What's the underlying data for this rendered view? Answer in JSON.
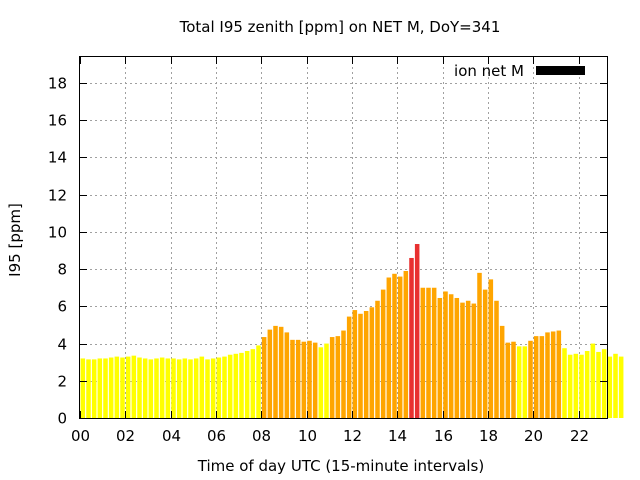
{
  "chart_data": {
    "type": "bar",
    "title": "Total I95 zenith [ppm] on NET M, DoY=341",
    "xlabel": "Time of day UTC (15-minute intervals)",
    "ylabel": "I95 [ppm]",
    "xlim": [
      0,
      23.25
    ],
    "ylim": [
      0,
      19.4
    ],
    "x_ticks": [
      {
        "value": 0,
        "label": "00"
      },
      {
        "value": 2,
        "label": "02"
      },
      {
        "value": 4,
        "label": "04"
      },
      {
        "value": 6,
        "label": "06"
      },
      {
        "value": 8,
        "label": "08"
      },
      {
        "value": 10,
        "label": "10"
      },
      {
        "value": 12,
        "label": "12"
      },
      {
        "value": 14,
        "label": "14"
      },
      {
        "value": 16,
        "label": "16"
      },
      {
        "value": 18,
        "label": "18"
      },
      {
        "value": 20,
        "label": "20"
      },
      {
        "value": 22,
        "label": "22"
      }
    ],
    "y_ticks": [
      {
        "value": 0,
        "label": "0"
      },
      {
        "value": 2,
        "label": "2"
      },
      {
        "value": 4,
        "label": "4"
      },
      {
        "value": 6,
        "label": "6"
      },
      {
        "value": 8,
        "label": "8"
      },
      {
        "value": 10,
        "label": "10"
      },
      {
        "value": 12,
        "label": "12"
      },
      {
        "value": 14,
        "label": "14"
      },
      {
        "value": 16,
        "label": "16"
      },
      {
        "value": 18,
        "label": "18"
      }
    ],
    "grid": true,
    "legend": {
      "placement": "top-right",
      "label": "ion net M",
      "color": "#000000"
    },
    "colors": {
      "low": "#ffff00",
      "medium": "#ffa500",
      "high": "#e83030"
    },
    "x_step": 0.25,
    "values": [
      3.2,
      3.15,
      3.15,
      3.2,
      3.2,
      3.25,
      3.3,
      3.25,
      3.3,
      3.35,
      3.25,
      3.2,
      3.15,
      3.2,
      3.25,
      3.2,
      3.2,
      3.15,
      3.2,
      3.15,
      3.2,
      3.3,
      3.15,
      3.2,
      3.25,
      3.3,
      3.4,
      3.45,
      3.5,
      3.6,
      3.7,
      3.9,
      4.35,
      4.75,
      4.95,
      4.9,
      4.6,
      4.2,
      4.2,
      4.1,
      4.15,
      4.05,
      3.8,
      4.0,
      4.35,
      4.4,
      4.7,
      5.45,
      5.8,
      5.6,
      5.75,
      5.95,
      6.3,
      6.9,
      7.55,
      7.75,
      7.6,
      7.9,
      8.6,
      9.35,
      7.0,
      7.0,
      7.0,
      6.45,
      6.8,
      6.65,
      6.45,
      6.2,
      6.3,
      6.15,
      7.8,
      6.9,
      7.45,
      6.3,
      4.95,
      4.05,
      4.1,
      3.85,
      3.85,
      4.15,
      4.4,
      4.4,
      4.6,
      4.65,
      4.7,
      3.75,
      3.4,
      3.45,
      3.4,
      3.6,
      4.0,
      3.55,
      3.7,
      3.3,
      3.45,
      3.3
    ],
    "levels": [
      "low",
      "low",
      "low",
      "low",
      "low",
      "low",
      "low",
      "low",
      "low",
      "low",
      "low",
      "low",
      "low",
      "low",
      "low",
      "low",
      "low",
      "low",
      "low",
      "low",
      "low",
      "low",
      "low",
      "low",
      "low",
      "low",
      "low",
      "low",
      "low",
      "low",
      "low",
      "low",
      "medium",
      "medium",
      "medium",
      "medium",
      "medium",
      "medium",
      "medium",
      "medium",
      "medium",
      "medium",
      "low",
      "low",
      "medium",
      "medium",
      "medium",
      "medium",
      "medium",
      "medium",
      "medium",
      "medium",
      "medium",
      "medium",
      "medium",
      "medium",
      "medium",
      "medium",
      "high",
      "high",
      "medium",
      "medium",
      "medium",
      "medium",
      "medium",
      "medium",
      "medium",
      "medium",
      "medium",
      "medium",
      "medium",
      "medium",
      "medium",
      "medium",
      "medium",
      "medium",
      "medium",
      "low",
      "low",
      "medium",
      "medium",
      "medium",
      "medium",
      "medium",
      "medium",
      "low",
      "low",
      "low",
      "low",
      "low",
      "low",
      "low",
      "low",
      "low",
      "low",
      "low"
    ]
  }
}
